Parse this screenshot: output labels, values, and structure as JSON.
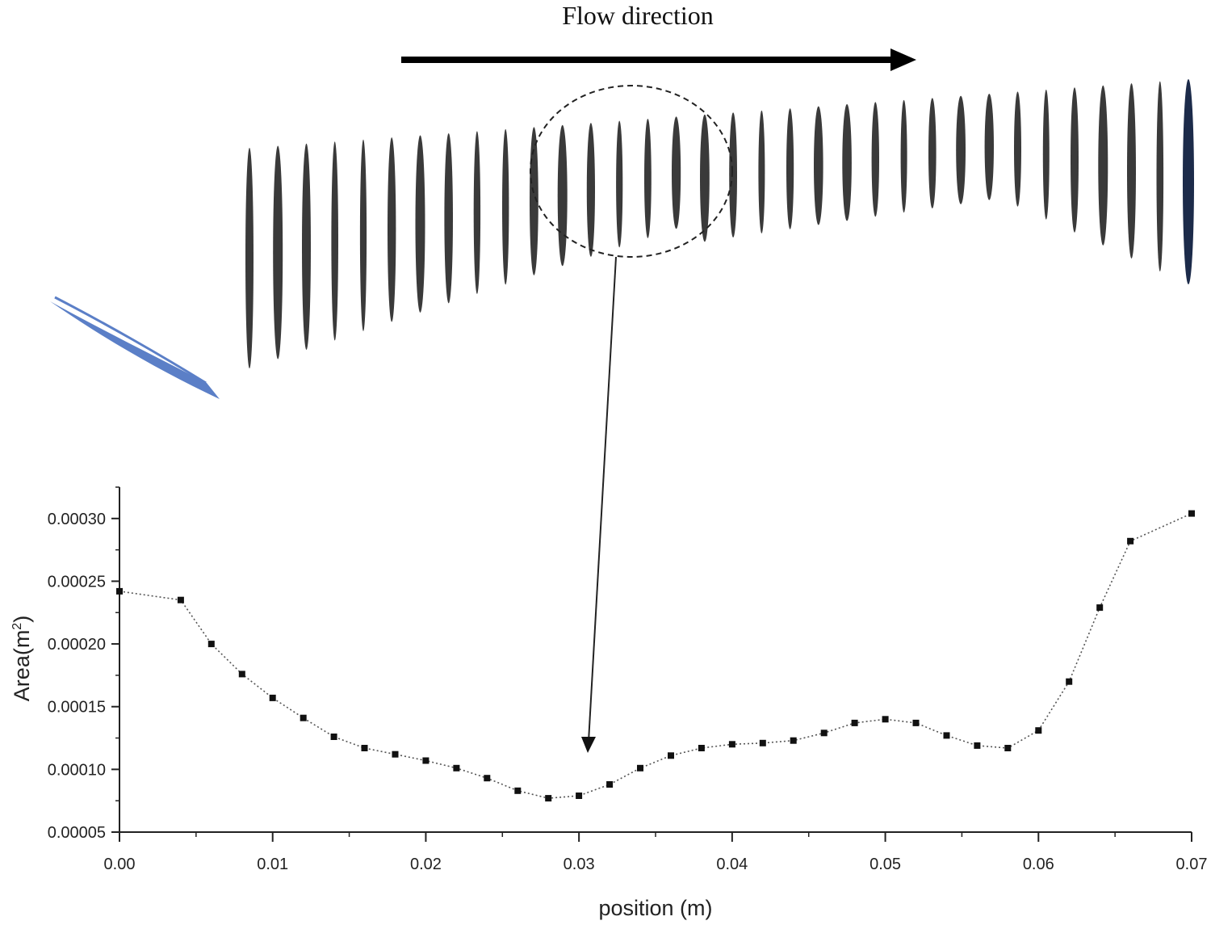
{
  "annotation": {
    "flow_label": "Flow direction"
  },
  "colors": {
    "slices": "#3a3a3a",
    "last_slice": "#1c2b4a",
    "inlet": "#5b7fc7",
    "line": "#555555",
    "marker": "#111111",
    "axis": "#222222"
  },
  "chart_data": {
    "type": "line",
    "xlabel": "position (m)",
    "ylabel": "Area(m",
    "ylabel_sup": "2",
    "ylabel_end": ")",
    "xlim": [
      0.0,
      0.07
    ],
    "ylim": [
      5e-05,
      0.000325
    ],
    "x_ticks": [
      {
        "v": 0.0,
        "label": "0.00"
      },
      {
        "v": 0.01,
        "label": "0.01"
      },
      {
        "v": 0.02,
        "label": "0.02"
      },
      {
        "v": 0.03,
        "label": "0.03"
      },
      {
        "v": 0.04,
        "label": "0.04"
      },
      {
        "v": 0.05,
        "label": "0.05"
      },
      {
        "v": 0.06,
        "label": "0.06"
      },
      {
        "v": 0.07,
        "label": "0.07"
      }
    ],
    "y_ticks": [
      {
        "v": 5e-05,
        "label": "0.00005"
      },
      {
        "v": 0.0001,
        "label": "0.00010"
      },
      {
        "v": 0.00015,
        "label": "0.00015"
      },
      {
        "v": 0.0002,
        "label": "0.00020"
      },
      {
        "v": 0.00025,
        "label": "0.00025"
      },
      {
        "v": 0.0003,
        "label": "0.00030"
      }
    ],
    "grid": false,
    "series": [
      {
        "x": [
          0.0,
          0.004,
          0.006,
          0.008,
          0.01,
          0.012,
          0.014,
          0.016,
          0.018,
          0.02,
          0.022,
          0.024,
          0.026,
          0.028,
          0.03,
          0.032,
          0.034,
          0.036,
          0.038,
          0.04,
          0.042,
          0.044,
          0.046,
          0.048,
          0.05,
          0.052,
          0.054,
          0.056,
          0.058,
          0.06,
          0.062,
          0.064,
          0.066,
          0.07
        ],
        "y": [
          0.000242,
          0.000235,
          0.0002,
          0.000176,
          0.000157,
          0.000141,
          0.000126,
          0.000117,
          0.000112,
          0.000107,
          0.000101,
          9.3e-05,
          8.3e-05,
          7.7e-05,
          7.9e-05,
          8.8e-05,
          0.000101,
          0.000111,
          0.000117,
          0.00012,
          0.000121,
          0.000123,
          0.000129,
          0.000137,
          0.00014,
          0.000137,
          0.000127,
          0.000119,
          0.000117,
          0.000131,
          0.00017,
          0.000229,
          0.000282,
          0.000304
        ]
      }
    ]
  }
}
